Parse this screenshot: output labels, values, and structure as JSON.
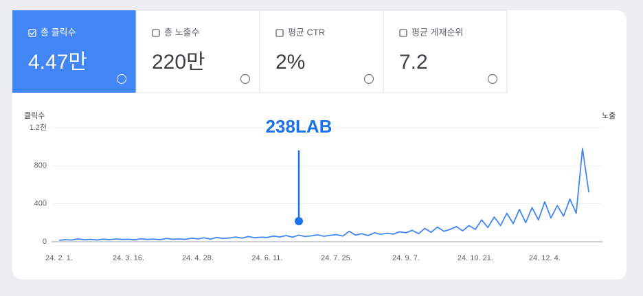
{
  "cards": [
    {
      "label": "총 클릭수",
      "value": "4.47만",
      "selected": true
    },
    {
      "label": "총 노출수",
      "value": "220만",
      "selected": false
    },
    {
      "label": "평균 CTR",
      "value": "2%",
      "selected": false
    },
    {
      "label": "평균 게재순위",
      "value": "7.2",
      "selected": false
    }
  ],
  "chart_data": {
    "type": "line",
    "ylabel": "클릭수",
    "y2label": "노출",
    "annotation": "238LAB",
    "categories": [
      "24. 2. 1.",
      null,
      null,
      null,
      null,
      null,
      null,
      null,
      null,
      null,
      null,
      "24. 3. 16.",
      null,
      null,
      null,
      null,
      null,
      null,
      null,
      null,
      null,
      null,
      "24. 4. 28.",
      null,
      null,
      null,
      null,
      null,
      null,
      null,
      null,
      null,
      null,
      "24. 6. 11.",
      null,
      null,
      null,
      null,
      null,
      null,
      null,
      null,
      null,
      null,
      "24. 7. 25.",
      null,
      null,
      null,
      null,
      null,
      null,
      null,
      null,
      null,
      null,
      "24. 9. 7.",
      null,
      null,
      null,
      null,
      null,
      null,
      null,
      null,
      null,
      null,
      "24. 10. 21.",
      null,
      null,
      null,
      null,
      null,
      null,
      null,
      null,
      null,
      null,
      "24. 12. 4.",
      null,
      null,
      null,
      null,
      null,
      null,
      null
    ],
    "series": [
      {
        "name": "클릭수",
        "color": "#4285f4",
        "values": [
          15,
          22,
          18,
          30,
          20,
          25,
          18,
          28,
          22,
          30,
          24,
          26,
          20,
          32,
          24,
          28,
          22,
          35,
          26,
          30,
          25,
          38,
          30,
          42,
          28,
          45,
          35,
          40,
          50,
          38,
          55,
          42,
          48,
          45,
          60,
          50,
          65,
          48,
          70,
          55,
          62,
          72,
          58,
          68,
          75,
          60,
          110,
          70,
          85,
          65,
          95,
          78,
          90,
          80,
          105,
          95,
          120,
          85,
          140,
          100,
          155,
          110,
          130,
          160,
          115,
          170,
          130,
          230,
          150,
          260,
          170,
          300,
          190,
          340,
          200,
          360,
          230,
          420,
          250,
          380,
          270,
          450,
          300,
          980,
          520
        ]
      }
    ],
    "ylim": [
      0,
      1200
    ],
    "yticks": [
      0,
      400,
      800,
      {
        "value": 1200,
        "label": "1.2천"
      }
    ],
    "grid": true
  }
}
